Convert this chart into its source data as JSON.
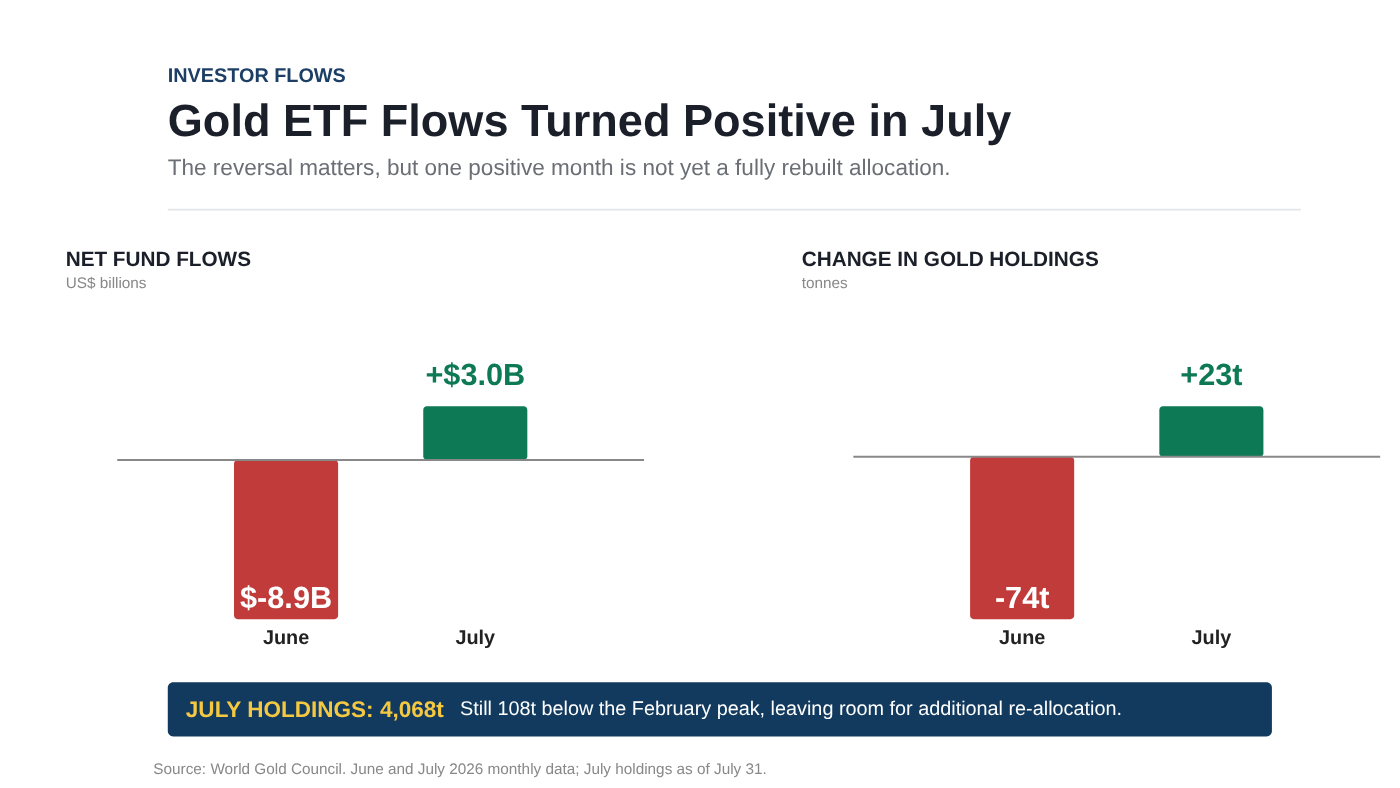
{
  "chart_data": [
    {
      "type": "other",
      "title": "Gold ETF Flows Turned Positive in July",
      "subtitle": "The reversal matters, but one positive month is not yet a fully rebuilt allocation.",
      "annotations": [
        "INVESTOR FLOWS"
      ]
    },
    {
      "type": "bar",
      "title": "NET FUND FLOWS",
      "subtitle": "US$ billions",
      "categories": [
        "June",
        "July"
      ],
      "values": [
        -8.9,
        3.0
      ],
      "colors": [
        "#c23b3b",
        "#0e7a55"
      ],
      "value_labels": [
        "$-8.9B",
        "+$3.0B"
      ],
      "grid": false
    },
    {
      "type": "bar",
      "title": "CHANGE IN GOLD HOLDINGS",
      "subtitle": "tonnes",
      "categories": [
        "June",
        "July"
      ],
      "values": [
        -74,
        23
      ],
      "colors": [
        "#c23b3b",
        "#0e7a55"
      ],
      "value_labels": [
        "-74t",
        "+23t"
      ],
      "grid": false
    },
    {
      "type": "other",
      "annotations": [
        "JULY HOLDINGS: 4,068t",
        "Still 108t below the February peak, leaving room for additional re-allocation.",
        "Source: World Gold Council. June and July 2026 monthly data; July holdings as of July 31."
      ]
    }
  ]
}
